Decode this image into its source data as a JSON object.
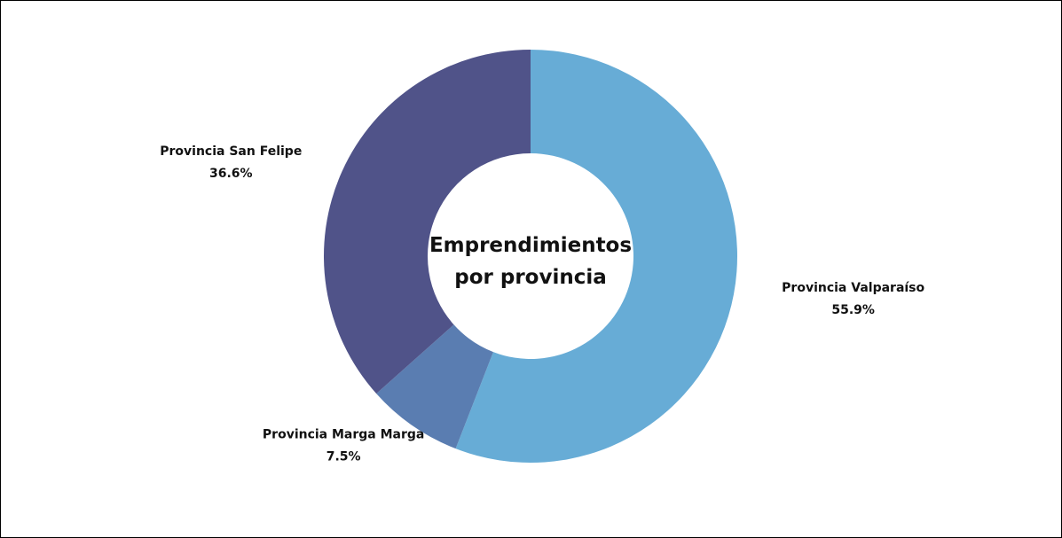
{
  "chart_data": {
    "type": "donut",
    "title": "Emprendimientos por provincia",
    "categories": [
      "Provincia Valparaíso",
      "Provincia Marga Marga",
      "Provincia San Felipe"
    ],
    "values": [
      55.9,
      7.5,
      36.6
    ],
    "value_labels": [
      "55.9%",
      "7.5%",
      "36.6%"
    ],
    "colors": [
      "#67acd6",
      "#5a7db1",
      "#505389"
    ]
  }
}
